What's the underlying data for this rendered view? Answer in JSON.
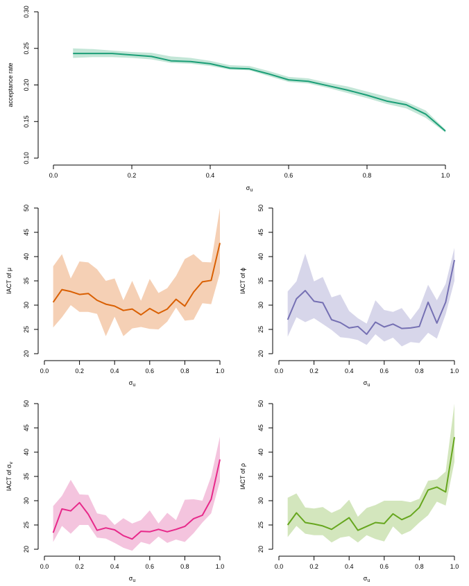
{
  "chart_data": [
    {
      "type": "line",
      "xlabel": "σ",
      "xlabel_sub": "u",
      "ylabel": "acceptance rate",
      "ylabel_sub": "",
      "xlim": [
        0,
        1
      ],
      "ylim": [
        0.1,
        0.3
      ],
      "xticks": [
        0.0,
        0.2,
        0.4,
        0.6,
        0.8,
        1.0
      ],
      "xtick_labels": [
        "0.0",
        "0.2",
        "0.4",
        "0.6",
        "0.8",
        "1.0"
      ],
      "yticks": [
        0.1,
        0.15,
        0.2,
        0.25,
        0.3
      ],
      "ytick_labels": [
        "0.10",
        "0.15",
        "0.20",
        "0.25",
        "0.30"
      ],
      "grid": false,
      "color": "#1b9e77",
      "band_color": "#c3e6d7",
      "x": [
        0.05,
        0.1,
        0.15,
        0.2,
        0.25,
        0.3,
        0.35,
        0.4,
        0.45,
        0.5,
        0.55,
        0.6,
        0.65,
        0.7,
        0.75,
        0.8,
        0.85,
        0.9,
        0.95,
        1.0
      ],
      "y": [
        0.243,
        0.243,
        0.243,
        0.241,
        0.239,
        0.233,
        0.232,
        0.229,
        0.223,
        0.222,
        0.215,
        0.207,
        0.205,
        0.199,
        0.193,
        0.186,
        0.178,
        0.173,
        0.16,
        0.137
      ],
      "lower": [
        0.237,
        0.238,
        0.238,
        0.237,
        0.235,
        0.23,
        0.229,
        0.226,
        0.221,
        0.22,
        0.212,
        0.204,
        0.202,
        0.196,
        0.189,
        0.182,
        0.174,
        0.168,
        0.155,
        0.135
      ],
      "upper": [
        0.25,
        0.249,
        0.247,
        0.245,
        0.244,
        0.239,
        0.237,
        0.233,
        0.227,
        0.226,
        0.219,
        0.211,
        0.209,
        0.203,
        0.198,
        0.191,
        0.184,
        0.177,
        0.165,
        0.139
      ]
    },
    {
      "type": "line",
      "xlabel": "σ",
      "xlabel_sub": "u",
      "ylabel": "IACT of μ",
      "ylabel_sub": "",
      "xlim": [
        0,
        1
      ],
      "ylim": [
        20,
        50
      ],
      "xticks": [
        0.0,
        0.2,
        0.4,
        0.6,
        0.8,
        1.0
      ],
      "xtick_labels": [
        "0.0",
        "0.2",
        "0.4",
        "0.6",
        "0.8",
        "1.0"
      ],
      "yticks": [
        20,
        25,
        30,
        35,
        40,
        45,
        50
      ],
      "ytick_labels": [
        "20",
        "25",
        "30",
        "35",
        "40",
        "45",
        "50"
      ],
      "grid": false,
      "color": "#d95f02",
      "band_color": "#f5d0b5",
      "x": [
        0.05,
        0.1,
        0.15,
        0.2,
        0.25,
        0.3,
        0.35,
        0.4,
        0.45,
        0.5,
        0.55,
        0.6,
        0.65,
        0.7,
        0.75,
        0.8,
        0.85,
        0.9,
        0.95,
        1.0
      ],
      "y": [
        30.6,
        33.2,
        32.8,
        32.2,
        32.4,
        31.0,
        30.2,
        29.8,
        28.9,
        29.2,
        28.0,
        29.3,
        28.3,
        29.2,
        31.2,
        29.8,
        32.7,
        34.8,
        35.1,
        42.8
      ],
      "lower": [
        25.4,
        27.5,
        30.0,
        28.6,
        28.6,
        28.2,
        23.6,
        27.6,
        23.6,
        25.2,
        25.5,
        25.1,
        25.0,
        26.6,
        29.5,
        26.8,
        27.0,
        30.4,
        30.2,
        36.6
      ],
      "upper": [
        38.0,
        40.5,
        35.5,
        39.0,
        38.8,
        37.4,
        35.0,
        35.5,
        31.0,
        35.0,
        30.9,
        35.4,
        32.5,
        33.5,
        36.0,
        39.5,
        40.5,
        38.9,
        38.8,
        50.0
      ]
    },
    {
      "type": "line",
      "xlabel": "σ",
      "xlabel_sub": "u",
      "ylabel": "IACT of ϕ",
      "ylabel_sub": "",
      "xlim": [
        0,
        1
      ],
      "ylim": [
        20,
        50
      ],
      "xticks": [
        0.0,
        0.2,
        0.4,
        0.6,
        0.8,
        1.0
      ],
      "xtick_labels": [
        "0.0",
        "0.2",
        "0.4",
        "0.6",
        "0.8",
        "1.0"
      ],
      "yticks": [
        20,
        25,
        30,
        35,
        40,
        45,
        50
      ],
      "ytick_labels": [
        "20",
        "25",
        "30",
        "35",
        "40",
        "45",
        "50"
      ],
      "grid": false,
      "color": "#7570b3",
      "band_color": "#d7d6ea",
      "x": [
        0.05,
        0.1,
        0.15,
        0.2,
        0.25,
        0.3,
        0.35,
        0.4,
        0.45,
        0.5,
        0.55,
        0.6,
        0.65,
        0.7,
        0.75,
        0.8,
        0.85,
        0.9,
        0.95,
        1.0
      ],
      "y": [
        27.0,
        31.3,
        33.0,
        30.8,
        30.5,
        27.0,
        26.4,
        25.3,
        25.6,
        24.0,
        26.5,
        25.5,
        26.1,
        25.2,
        25.3,
        25.6,
        30.6,
        26.3,
        30.6,
        39.3
      ],
      "lower": [
        23.5,
        27.5,
        26.5,
        27.3,
        26.1,
        24.9,
        23.4,
        23.2,
        22.8,
        21.8,
        24.0,
        22.5,
        23.3,
        21.5,
        22.4,
        22.2,
        24.3,
        23.1,
        28.1,
        35.0
      ],
      "upper": [
        32.8,
        34.9,
        40.6,
        34.9,
        35.8,
        31.6,
        32.2,
        28.8,
        27.3,
        26.2,
        31.0,
        29.0,
        28.6,
        29.4,
        27.0,
        29.4,
        34.2,
        31.0,
        34.4,
        41.8
      ]
    },
    {
      "type": "line",
      "xlabel": "σ",
      "xlabel_sub": "u",
      "ylabel": "IACT of σ",
      "ylabel_sub": "v",
      "xlim": [
        0,
        1
      ],
      "ylim": [
        20,
        50
      ],
      "xticks": [
        0.0,
        0.2,
        0.4,
        0.6,
        0.8,
        1.0
      ],
      "xtick_labels": [
        "0.0",
        "0.2",
        "0.4",
        "0.6",
        "0.8",
        "1.0"
      ],
      "yticks": [
        20,
        25,
        30,
        35,
        40,
        45,
        50
      ],
      "ytick_labels": [
        "20",
        "25",
        "30",
        "35",
        "40",
        "45",
        "50"
      ],
      "grid": false,
      "color": "#e7298a",
      "band_color": "#f4c4de",
      "x": [
        0.05,
        0.1,
        0.15,
        0.2,
        0.25,
        0.3,
        0.35,
        0.4,
        0.45,
        0.5,
        0.55,
        0.6,
        0.65,
        0.7,
        0.75,
        0.8,
        0.85,
        0.9,
        0.95,
        1.0
      ],
      "y": [
        23.4,
        28.3,
        27.9,
        29.6,
        27.2,
        23.9,
        24.4,
        24.0,
        22.8,
        22.1,
        23.7,
        23.6,
        24.1,
        23.6,
        24.1,
        24.7,
        26.3,
        27.0,
        30.3,
        38.5
      ],
      "lower": [
        21.5,
        24.8,
        23.2,
        25.0,
        25.0,
        22.4,
        22.2,
        21.3,
        20.3,
        19.7,
        21.5,
        21.0,
        22.6,
        21.3,
        22.0,
        21.5,
        23.3,
        25.5,
        27.4,
        34.0
      ],
      "upper": [
        28.9,
        31.0,
        34.3,
        31.3,
        31.2,
        27.4,
        27.0,
        25.0,
        26.4,
        25.3,
        26.0,
        28.0,
        25.3,
        27.5,
        26.0,
        30.2,
        30.3,
        30.0,
        35.0,
        43.2
      ]
    },
    {
      "type": "line",
      "xlabel": "σ",
      "xlabel_sub": "u",
      "ylabel": "IACT of ρ",
      "ylabel_sub": "",
      "xlim": [
        0,
        1
      ],
      "ylim": [
        20,
        50
      ],
      "xticks": [
        0.0,
        0.2,
        0.4,
        0.6,
        0.8,
        1.0
      ],
      "xtick_labels": [
        "0.0",
        "0.2",
        "0.4",
        "0.6",
        "0.8",
        "1.0"
      ],
      "yticks": [
        20,
        25,
        30,
        35,
        40,
        45,
        50
      ],
      "ytick_labels": [
        "20",
        "25",
        "30",
        "35",
        "40",
        "45",
        "50"
      ],
      "grid": false,
      "color": "#66a61e",
      "band_color": "#d3e6bd",
      "x": [
        0.05,
        0.1,
        0.15,
        0.2,
        0.25,
        0.3,
        0.35,
        0.4,
        0.45,
        0.5,
        0.55,
        0.6,
        0.65,
        0.7,
        0.75,
        0.8,
        0.85,
        0.9,
        0.95,
        1.0
      ],
      "y": [
        25.0,
        27.5,
        25.5,
        25.2,
        24.8,
        24.1,
        25.3,
        26.5,
        23.9,
        24.7,
        25.5,
        25.3,
        27.3,
        26.1,
        26.9,
        28.6,
        32.2,
        32.8,
        31.8,
        43.1
      ],
      "lower": [
        22.5,
        24.8,
        23.2,
        22.9,
        22.9,
        21.4,
        22.4,
        22.7,
        21.4,
        22.9,
        22.1,
        21.6,
        24.7,
        23.0,
        23.8,
        25.5,
        27.0,
        29.8,
        29.0,
        38.0
      ],
      "upper": [
        30.6,
        31.5,
        28.6,
        28.4,
        28.7,
        27.5,
        28.3,
        30.2,
        26.7,
        28.5,
        29.1,
        30.0,
        30.0,
        30.0,
        29.7,
        30.4,
        34.1,
        34.4,
        36.0,
        50.0
      ]
    }
  ]
}
